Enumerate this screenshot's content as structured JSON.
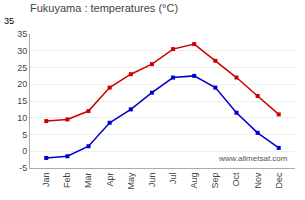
{
  "chart_data": {
    "type": "line",
    "title": "Fukuyama : temperatures (°C)",
    "categories": [
      "Jan",
      "Feb",
      "Mar",
      "Apr",
      "May",
      "Jun",
      "Jul",
      "Aug",
      "Sep",
      "Oct",
      "Nov",
      "Dec"
    ],
    "series": [
      {
        "color": "#cc0000",
        "marker": "square",
        "values": [
          9,
          9.5,
          12,
          19,
          23,
          26,
          30.5,
          32,
          27,
          22,
          16.5,
          11
        ]
      },
      {
        "color": "#0000cc",
        "marker": "square",
        "values": [
          -2,
          -1.5,
          1.5,
          8.5,
          12.5,
          17.5,
          22,
          22.5,
          19,
          11.5,
          5.5,
          1
        ]
      }
    ],
    "ylim": [
      -5,
      35
    ],
    "yticks": [
      -5,
      0,
      5,
      10,
      15,
      20,
      25,
      30,
      35
    ],
    "grid": true,
    "annotations": [
      "www.allmetsat.com",
      "35"
    ]
  }
}
